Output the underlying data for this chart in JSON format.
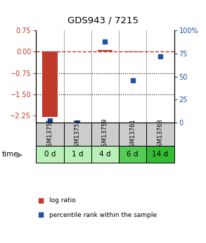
{
  "title": "GDS943 / 7215",
  "samples": [
    "GSM13755",
    "GSM13757",
    "GSM13759",
    "GSM13761",
    "GSM13763"
  ],
  "time_labels": [
    "0 d",
    "1 d",
    "4 d",
    "6 d",
    "14 d"
  ],
  "log_ratio": [
    -2.3,
    0.0,
    0.07,
    -0.02,
    0.02
  ],
  "percentile_rank": [
    2,
    0,
    88,
    46,
    72
  ],
  "ylim_left": [
    -2.5,
    0.75
  ],
  "ylim_right": [
    0,
    100
  ],
  "left_ticks": [
    0.75,
    0,
    -0.75,
    -1.5,
    -2.25
  ],
  "right_ticks": [
    100,
    75,
    50,
    25,
    0
  ],
  "dotted_lines": [
    -0.75,
    -1.5
  ],
  "bar_color": "#c0392b",
  "dot_color": "#2155a3",
  "sample_bg": "#cccccc",
  "time_bg_colors": [
    "#b8f0b8",
    "#b8f0b8",
    "#b8f0b8",
    "#55cc55",
    "#33bb33"
  ],
  "legend_bar_label": "log ratio",
  "legend_dot_label": "percentile rank within the sample",
  "background_color": "#ffffff"
}
